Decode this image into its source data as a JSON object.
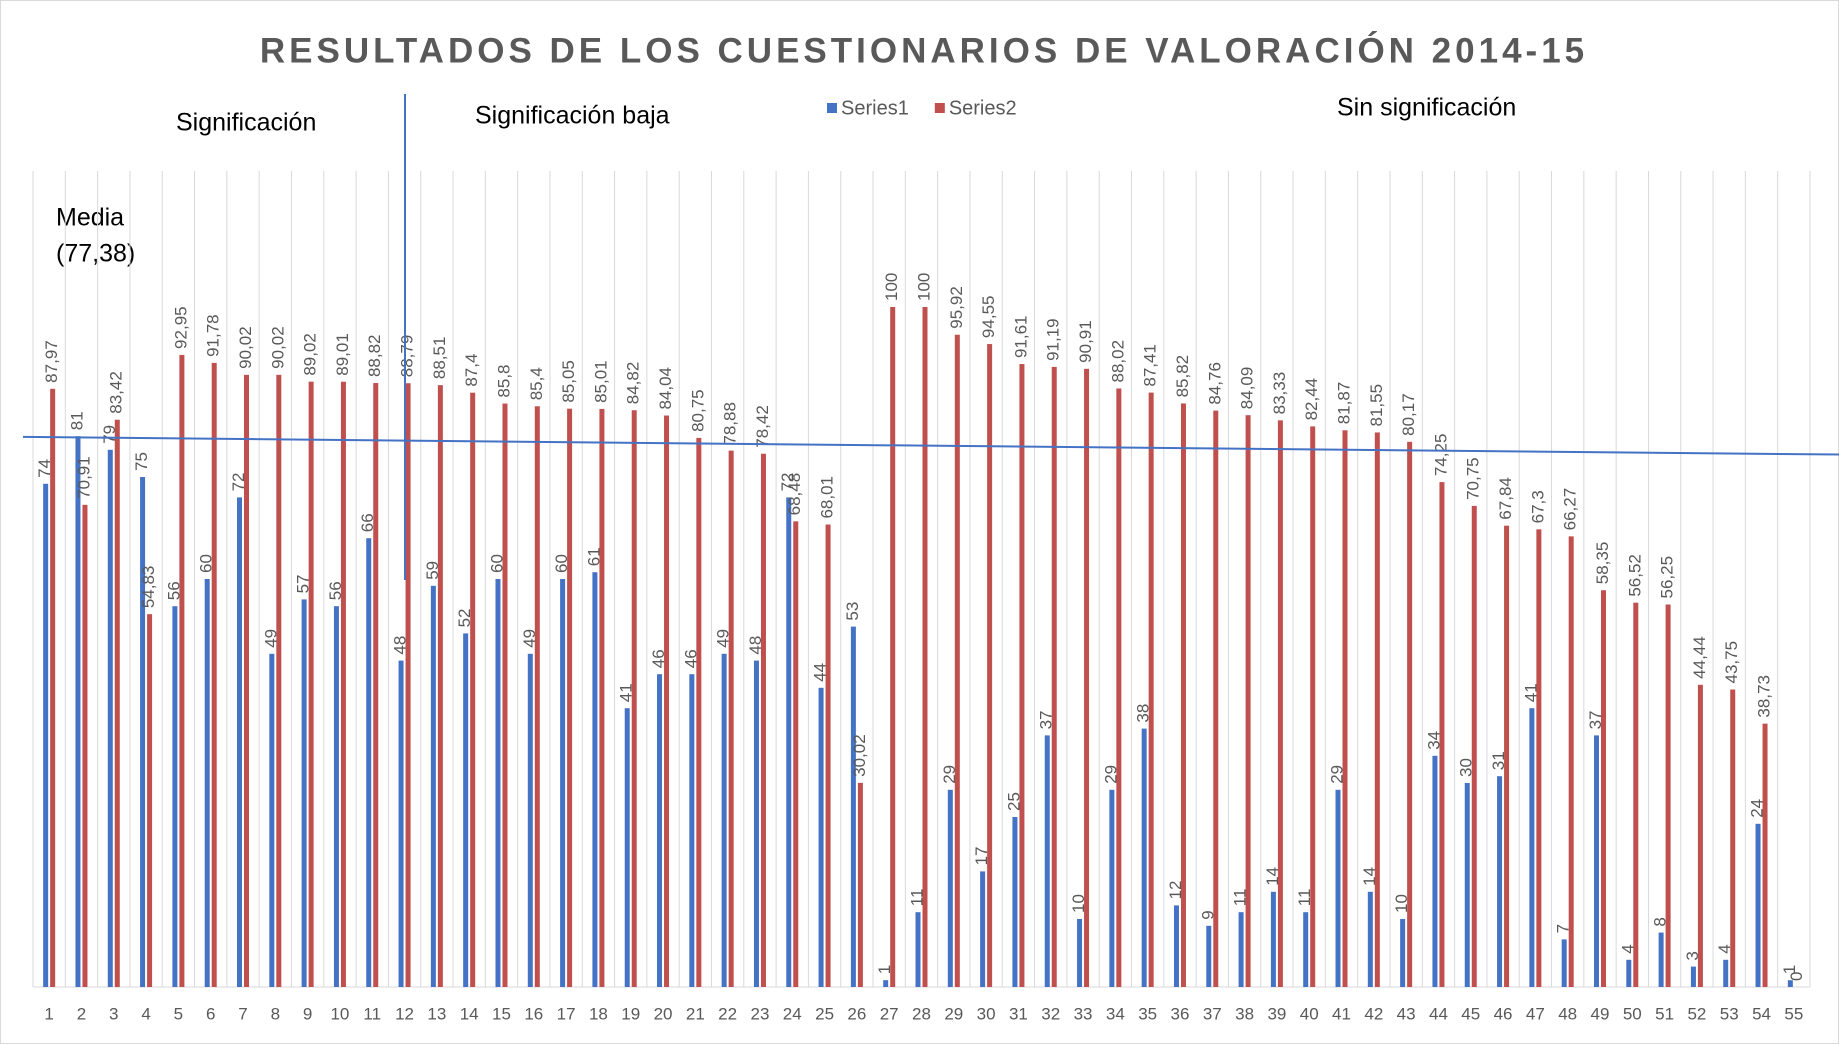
{
  "chart_data": {
    "type": "bar",
    "title": "RESULTADOS DE LOS CUESTIONARIOS DE VALORACIÓN 2014-15",
    "annotations": [
      "Significación",
      "Significación baja",
      "Sin significación",
      "Media",
      "(77,38)"
    ],
    "categories": [
      "1",
      "2",
      "3",
      "4",
      "5",
      "6",
      "7",
      "8",
      "9",
      "10",
      "11",
      "12",
      "13",
      "14",
      "15",
      "16",
      "17",
      "18",
      "19",
      "20",
      "21",
      "22",
      "23",
      "24",
      "25",
      "26",
      "27",
      "28",
      "29",
      "30",
      "31",
      "32",
      "33",
      "34",
      "35",
      "36",
      "37",
      "38",
      "39",
      "40",
      "41",
      "42",
      "43",
      "44",
      "45",
      "46",
      "47",
      "48",
      "49",
      "50",
      "51",
      "52",
      "53",
      "54",
      "55"
    ],
    "series": [
      {
        "name": "Series1",
        "color": "#4472c4",
        "values": [
          74,
          81,
          79,
          75,
          56,
          60,
          72,
          49,
          57,
          56,
          66,
          48,
          59,
          52,
          60,
          49,
          60,
          61,
          41,
          46,
          46,
          49,
          48,
          72,
          44,
          53,
          1,
          11,
          29,
          17,
          25,
          37,
          10,
          29,
          38,
          12,
          9,
          11,
          14,
          11,
          29,
          14,
          10,
          34,
          30,
          31,
          41,
          7,
          37,
          4,
          8,
          3,
          4,
          24,
          1
        ]
      },
      {
        "name": "Series2",
        "color": "#c0504d",
        "values": [
          87.97,
          70.91,
          83.42,
          54.83,
          92.95,
          91.78,
          90.02,
          90.02,
          89.02,
          89.01,
          88.82,
          88.79,
          88.51,
          87.4,
          85.8,
          85.4,
          85.05,
          85.01,
          84.82,
          84.04,
          80.75,
          78.88,
          78.42,
          68.48,
          68.01,
          30.02,
          100,
          100,
          95.92,
          94.55,
          91.61,
          91.19,
          90.91,
          88.02,
          87.41,
          85.82,
          84.76,
          84.09,
          83.33,
          82.44,
          81.87,
          81.55,
          80.17,
          74.25,
          70.75,
          67.84,
          67.3,
          66.27,
          58.35,
          56.52,
          56.25,
          44.44,
          43.75,
          38.73,
          0
        ],
        "value_labels": [
          "87,97",
          "70,91",
          "83,42",
          "54,83",
          "92,95",
          "91,78",
          "90,02",
          "90,02",
          "89,02",
          "89,01",
          "88,82",
          "88,79",
          "88,51",
          "87,4",
          "85,8",
          "85,4",
          "85,05",
          "85,01",
          "84,82",
          "84,04",
          "80,75",
          "78,88",
          "78,42",
          "68,48",
          "68,01",
          "30,02",
          "100",
          "100",
          "95,92",
          "94,55",
          "91,61",
          "91,19",
          "90,91",
          "88,02",
          "87,41",
          "85,82",
          "84,76",
          "84,09",
          "83,33",
          "82,44",
          "81,87",
          "81,55",
          "80,17",
          "74,25",
          "70,75",
          "67,84",
          "67,3",
          "66,27",
          "58,35",
          "56,52",
          "56,25",
          "44,44",
          "43,75",
          "38,73",
          "0"
        ]
      }
    ],
    "mean_line": [
      80.9,
      78.3
    ],
    "ylim": [
      0,
      120
    ],
    "grid": true,
    "legend": "top"
  }
}
